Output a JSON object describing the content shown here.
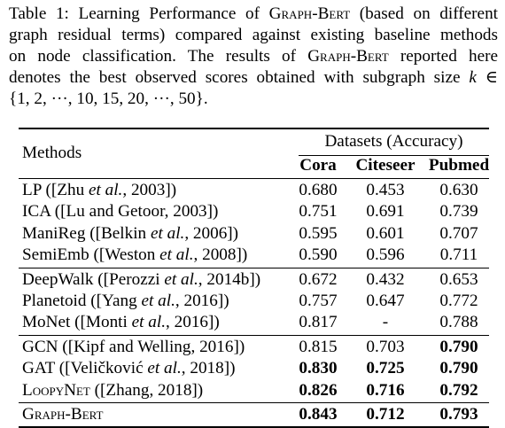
{
  "caption": {
    "lines": [
      [
        "Table 1: Learning Performance of ",
        {
          "sc": "Graph-Bert"
        },
        " (based on different"
      ],
      [
        "graph residual terms) compared against existing baseline methods"
      ],
      [
        "on node classification.  The results of ",
        {
          "sc": "Graph-Bert"
        },
        " reported here"
      ],
      [
        "denotes the best observed scores obtained with subgraph size ",
        {
          "it": "k"
        },
        " ∈"
      ],
      [
        "{1, 2, ···, 10, 15, 20, ···, 50}."
      ]
    ]
  },
  "table": {
    "methods_header": "Methods",
    "datasets_header": "Datasets (Accuracy)",
    "columns": [
      "Cora",
      "Citeseer",
      "Pubmed"
    ],
    "groups": [
      [
        {
          "method": [
            "LP ([Zhu ",
            {
              "it": "et al."
            },
            ", 2003])"
          ],
          "values": [
            "0.680",
            "0.453",
            "0.630"
          ],
          "bold": [
            false,
            false,
            false
          ]
        },
        {
          "method": [
            "ICA ([Lu and Getoor, 2003])"
          ],
          "values": [
            "0.751",
            "0.691",
            "0.739"
          ],
          "bold": [
            false,
            false,
            false
          ]
        },
        {
          "method": [
            "ManiReg ([Belkin ",
            {
              "it": "et al."
            },
            ", 2006])"
          ],
          "values": [
            "0.595",
            "0.601",
            "0.707"
          ],
          "bold": [
            false,
            false,
            false
          ]
        },
        {
          "method": [
            "SemiEmb ([Weston ",
            {
              "it": "et al."
            },
            ", 2008])"
          ],
          "values": [
            "0.590",
            "0.596",
            "0.711"
          ],
          "bold": [
            false,
            false,
            false
          ]
        }
      ],
      [
        {
          "method": [
            "DeepWalk ([Perozzi ",
            {
              "it": "et al."
            },
            ", 2014b])"
          ],
          "values": [
            "0.672",
            "0.432",
            "0.653"
          ],
          "bold": [
            false,
            false,
            false
          ]
        },
        {
          "method": [
            "Planetoid ([Yang ",
            {
              "it": "et al."
            },
            ", 2016])"
          ],
          "values": [
            "0.757",
            "0.647",
            "0.772"
          ],
          "bold": [
            false,
            false,
            false
          ]
        },
        {
          "method": [
            "MoNet ([Monti ",
            {
              "it": "et al."
            },
            ", 2016])"
          ],
          "values": [
            "0.817",
            "-",
            "0.788"
          ],
          "bold": [
            false,
            false,
            false
          ]
        }
      ],
      [
        {
          "method": [
            "GCN ([Kipf and Welling, 2016])"
          ],
          "values": [
            "0.815",
            "0.703",
            "0.790"
          ],
          "bold": [
            false,
            false,
            true
          ]
        },
        {
          "method": [
            "GAT ([Veličković ",
            {
              "it": "et al."
            },
            ", 2018])"
          ],
          "values": [
            "0.830",
            "0.725",
            "0.790"
          ],
          "bold": [
            true,
            true,
            true
          ]
        },
        {
          "method": [
            {
              "sc": "LoopyNet"
            },
            " ([Zhang, 2018])"
          ],
          "values": [
            "0.826",
            "0.716",
            "0.792"
          ],
          "bold": [
            true,
            true,
            true
          ]
        }
      ],
      [
        {
          "method": [
            {
              "sc": "Graph-Bert"
            }
          ],
          "values": [
            "0.843",
            "0.712",
            "0.793"
          ],
          "bold": [
            true,
            true,
            true
          ]
        }
      ]
    ]
  }
}
